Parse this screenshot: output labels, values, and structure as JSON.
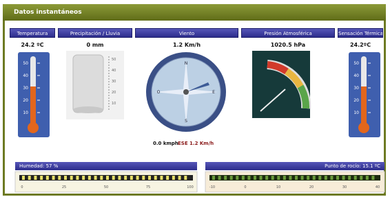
{
  "header": {
    "title": "Datos instantáneos"
  },
  "panels": [
    {
      "title": "Temperatura",
      "value": "24.2 ºC"
    },
    {
      "title": "Precipitación / Lluvia",
      "value": "0 mm"
    },
    {
      "title": "Viento",
      "value": "1.2 Km/h"
    },
    {
      "title": "Presión Atmosférica",
      "value": "1020.5 hPa"
    },
    {
      "title": "Sensación Térmica",
      "value": "24.2ºC"
    }
  ],
  "thermo_scale": [
    "50",
    "40",
    "30",
    "20",
    "10"
  ],
  "rain_scale": [
    "50",
    "40",
    "30",
    "20",
    "10"
  ],
  "compass": [
    "N",
    "E",
    "S",
    "O"
  ],
  "wind_caption": [
    "0.0 kmph",
    "ESE 1.2 Km/h"
  ],
  "humidity": {
    "title": "Humedad: 57 %",
    "scale": [
      "0",
      "25",
      "50",
      "75",
      "100"
    ]
  },
  "dewpoint": {
    "title": "Punto de rocío: 15.1 ºC",
    "scale": [
      "-10",
      "0",
      "10",
      "20",
      "30",
      "40"
    ]
  }
}
